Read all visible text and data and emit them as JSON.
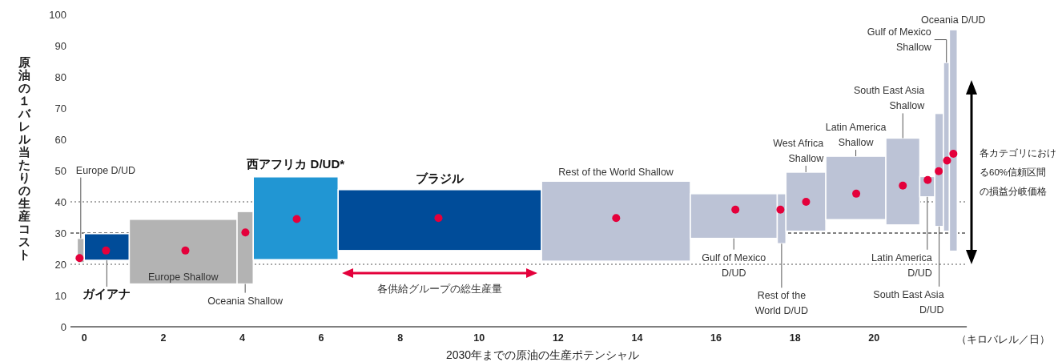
{
  "chart_data": {
    "type": "bar",
    "xlabel": "2030年までの原油の生産ポテンシャル",
    "ylabel": "原油の１バレル当たりの生産コスト",
    "xlim": [
      -0.35,
      22.35
    ],
    "xticks": [
      0,
      2,
      4,
      6,
      8,
      10,
      12,
      14,
      16,
      18,
      20
    ],
    "ylim": [
      0,
      100
    ],
    "yticks": [
      0,
      10,
      20,
      30,
      40,
      50,
      60,
      70,
      80,
      90,
      100
    ],
    "marker": "circle",
    "series": [
      {
        "x": [
          -0.09,
          0.57,
          2.505,
          4.075,
          5.355,
          9.005,
          13.465,
          16.45,
          17.66,
          18.275,
          19.54,
          20.73,
          21.35,
          21.65,
          21.835,
          22.01
        ],
        "values": [
          7.8,
          8.5,
          20.7,
          23.2,
          26.5,
          19.5,
          25.6,
          14.3,
          16.0,
          18.9,
          20.3,
          27.8,
          6.5,
          36.2,
          54.0,
          70.9
        ],
        "base": [
          20.5,
          21.3,
          13.7,
          13.7,
          21.5,
          24.4,
          21.0,
          28.3,
          26.6,
          30.6,
          34.3,
          32.6,
          41.6,
          32.1,
          30.6,
          24.2
        ],
        "colors": [
          "#b3b3b3",
          "#004c99",
          "#b3b3b3",
          "#b3b3b3",
          "#2196d3",
          "#004c99",
          "#bcc3d6",
          "#bcc3d6",
          "#bcc3d6",
          "#bcc3d6",
          "#bcc3d6",
          "#bcc3d6",
          "#bcc3d6",
          "#bcc3d6",
          "#bcc3d6",
          "#bcc3d6"
        ]
      },
      {
        "type": "scatter",
        "color": "#e4003b",
        "x": [
          -0.12,
          0.55,
          2.56,
          4.08,
          5.38,
          8.97,
          13.47,
          16.49,
          17.63,
          18.28,
          19.55,
          20.73,
          21.36,
          21.64,
          21.85,
          22.01
        ],
        "values": [
          22.0,
          24.4,
          24.4,
          30.2,
          34.5,
          34.8,
          34.8,
          37.5,
          37.5,
          40.0,
          42.6,
          45.2,
          47.0,
          49.8,
          53.2,
          55.4
        ]
      }
    ],
    "ref_lines": [
      {
        "axis": "y",
        "value": 40,
        "color": "#555555",
        "line_style": "dotted"
      },
      {
        "axis": "y",
        "value": 30,
        "color": "#000000",
        "line_style": "dashed"
      },
      {
        "axis": "y",
        "value": 20,
        "color": "#555555",
        "line_style": "dotted"
      }
    ],
    "annotations": [
      {
        "text": "Europe D/UD",
        "x": -0.09,
        "y": 28.3
      },
      {
        "text": "ガイアナ",
        "x": 0.57,
        "y": 21.3
      },
      "Europe Shallow",
      {
        "text": "Oceania Shallow",
        "x": 4.075,
        "y": 13.7
      },
      "西アフリカ D/UD*",
      "ブラジル",
      "Rest of the World Shallow",
      {
        "text": "Gulf of Mexico D/UD",
        "x": 16.45,
        "y": 28.3
      },
      {
        "text": "Rest of the World D/UD",
        "x": 17.66,
        "y": 26.6
      },
      {
        "text": "West Africa Shallow",
        "x": 18.275,
        "y": 49.5
      },
      {
        "text": "Latin America Shallow",
        "x": 19.54,
        "y": 54.6
      },
      {
        "text": "South East Asia Shallow",
        "x": 20.73,
        "y": 60.4
      },
      {
        "text": "Latin America D/UD",
        "x": 21.35,
        "y": 41.6
      },
      {
        "text": "South East Asia D/UD",
        "x": 21.65,
        "y": 32.1
      },
      {
        "text": "Gulf of Mexico Shallow",
        "x": 21.835,
        "y": 84.6
      },
      "Oceania D/UD",
      "各供給グループの総生産量",
      "各カテゴリにおける60%信頼区間の損益分岐価格",
      "（キロバレル／日）"
    ]
  }
}
